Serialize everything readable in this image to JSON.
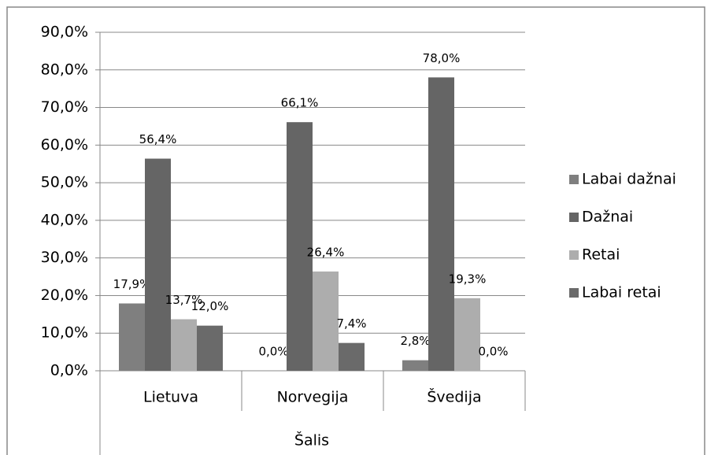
{
  "chart_data": {
    "type": "bar",
    "x_label": "Šalis",
    "categories": [
      "Lietuva",
      "Norvegija",
      "Švedija"
    ],
    "series": [
      {
        "name": "Labai dažnai",
        "color": "#7f7f7f",
        "values": [
          17.9,
          0.0,
          2.8
        ],
        "value_labels": [
          "17,9%",
          "0,0%",
          "2,8%"
        ]
      },
      {
        "name": "Dažnai",
        "color": "#656565",
        "values": [
          56.4,
          66.1,
          78.0
        ],
        "value_labels": [
          "56,4%",
          "66,1%",
          "78,0%"
        ]
      },
      {
        "name": "Retai",
        "color": "#adadad",
        "values": [
          13.7,
          26.4,
          19.3
        ],
        "value_labels": [
          "13,7%",
          "26,4%",
          "19,3%"
        ]
      },
      {
        "name": "Labai retai",
        "color": "#6a6a6a",
        "values": [
          12.0,
          7.4,
          0.0
        ],
        "value_labels": [
          "12,0%",
          "7,4%",
          "0,0%"
        ]
      }
    ],
    "ylim": [
      0,
      90
    ],
    "yticks": [
      {
        "value": 0,
        "label": "0,0%"
      },
      {
        "value": 10,
        "label": "10,0%"
      },
      {
        "value": 20,
        "label": "20,0%"
      },
      {
        "value": 30,
        "label": "30,0%"
      },
      {
        "value": 40,
        "label": "40,0%"
      },
      {
        "value": 50,
        "label": "50,0%"
      },
      {
        "value": 60,
        "label": "60,0%"
      },
      {
        "value": 70,
        "label": "70,0%"
      },
      {
        "value": 80,
        "label": "80,0%"
      },
      {
        "value": 90,
        "label": "90,0%"
      }
    ],
    "grid": true,
    "legend": "right"
  }
}
